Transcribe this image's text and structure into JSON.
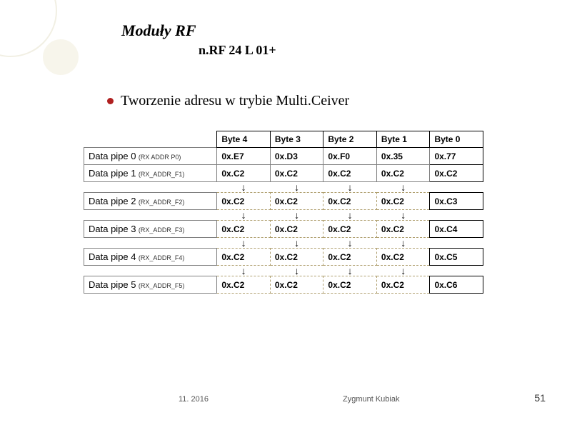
{
  "title": "Moduły RF",
  "subtitle": "n.RF 24 L 01+",
  "bullet_text": "Tworzenie adresu w trybie Multi.Ceiver",
  "table": {
    "headers": [
      "Byte 4",
      "Byte 3",
      "Byte 2",
      "Byte 1",
      "Byte 0"
    ],
    "pipes": [
      {
        "label": "Data pipe 0",
        "reg": "(RX ADDR P0)",
        "cells": [
          "0x.E7",
          "0x.D3",
          "0x.F0",
          "0x.35",
          "0x.77"
        ],
        "style": "solid"
      },
      {
        "label": "Data pipe 1",
        "reg": "(RX_ADDR_F1)",
        "cells": [
          "0x.C2",
          "0x.C2",
          "0x.C2",
          "0x.C2",
          "0x.C2"
        ],
        "style": "solid"
      },
      {
        "label": "Data pipe 2",
        "reg": "(RX_ADDR_F2)",
        "cells": [
          "0x.C2",
          "0x.C2",
          "0x.C2",
          "0x.C2",
          "0x.C3"
        ],
        "style": "dashed"
      },
      {
        "label": "Data pipe 3",
        "reg": "(RX_ADDR_F3)",
        "cells": [
          "0x.C2",
          "0x.C2",
          "0x.C2",
          "0x.C2",
          "0x.C4"
        ],
        "style": "dashed"
      },
      {
        "label": "Data pipe 4",
        "reg": "(RX_ADDR_F4)",
        "cells": [
          "0x.C2",
          "0x.C2",
          "0x.C2",
          "0x.C2",
          "0x.C5"
        ],
        "style": "dashed"
      },
      {
        "label": "Data pipe 5",
        "reg": "(RX_ADDR_F5)",
        "cells": [
          "0x.C2",
          "0x.C2",
          "0x.C2",
          "0x.C2",
          "0x.C6"
        ],
        "style": "dashed"
      }
    ],
    "arrow": "↓"
  },
  "footer": {
    "date": "11. 2016",
    "author": "Zygmunt Kubiak",
    "page": "51"
  },
  "colors": {
    "bullet": "#b02020",
    "dashed_border": "#b0a070"
  }
}
